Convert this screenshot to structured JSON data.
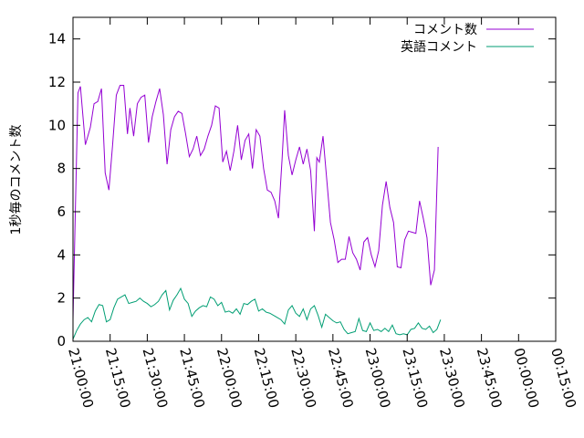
{
  "chart_data": {
    "type": "line",
    "title": "",
    "xlabel": "",
    "ylabel": "1秒毎のコメント数",
    "ylim": [
      0,
      15
    ],
    "yticks": [
      0,
      2,
      4,
      6,
      8,
      10,
      12,
      14
    ],
    "xticks": [
      "21:00:00",
      "21:15:00",
      "21:30:00",
      "21:45:00",
      "22:00:00",
      "22:15:00",
      "22:30:00",
      "22:45:00",
      "23:00:00",
      "23:15:00",
      "23:30:00",
      "23:45:00",
      "00:00:00",
      "00:15:00"
    ],
    "xlim_minutes": [
      0,
      195
    ],
    "grid": false,
    "legend_position": "top-right",
    "series": [
      {
        "name": "コメント数",
        "color": "#9400d3",
        "points": [
          [
            0,
            1.0
          ],
          [
            1,
            6.3
          ],
          [
            2,
            11.5
          ],
          [
            3,
            11.8
          ],
          [
            5,
            9.1
          ],
          [
            7,
            9.9
          ],
          [
            8.5,
            11.0
          ],
          [
            10,
            11.1
          ],
          [
            11.5,
            11.7
          ],
          [
            13,
            7.8
          ],
          [
            14.5,
            7.0
          ],
          [
            16,
            9.1
          ],
          [
            17.5,
            11.4
          ],
          [
            19,
            11.85
          ],
          [
            20.5,
            11.85
          ],
          [
            22,
            9.6
          ],
          [
            23,
            10.8
          ],
          [
            24.5,
            9.5
          ],
          [
            26,
            11.0
          ],
          [
            27.5,
            11.3
          ],
          [
            29,
            11.4
          ],
          [
            30.5,
            9.2
          ],
          [
            32,
            10.4
          ],
          [
            33.5,
            11.1
          ],
          [
            35,
            11.7
          ],
          [
            36.5,
            10.5
          ],
          [
            38,
            8.2
          ],
          [
            39.5,
            9.8
          ],
          [
            41,
            10.4
          ],
          [
            42.5,
            10.65
          ],
          [
            44,
            10.55
          ],
          [
            45.5,
            9.6
          ],
          [
            47,
            8.55
          ],
          [
            48.5,
            8.9
          ],
          [
            50,
            9.5
          ],
          [
            51.5,
            8.6
          ],
          [
            53,
            8.9
          ],
          [
            54.5,
            9.5
          ],
          [
            56,
            10.0
          ],
          [
            57.5,
            10.9
          ],
          [
            59,
            10.8
          ],
          [
            60.5,
            8.3
          ],
          [
            62,
            8.8
          ],
          [
            63.5,
            7.9
          ],
          [
            65,
            8.8
          ],
          [
            66.5,
            10.0
          ],
          [
            68,
            8.4
          ],
          [
            69.5,
            9.3
          ],
          [
            71,
            9.6
          ],
          [
            72.5,
            8.0
          ],
          [
            74,
            9.8
          ],
          [
            75.5,
            9.5
          ],
          [
            77,
            8.0
          ],
          [
            78.5,
            7.0
          ],
          [
            80,
            6.9
          ],
          [
            81.5,
            6.5
          ],
          [
            83,
            5.7
          ],
          [
            84.5,
            8.5
          ],
          [
            85.5,
            10.7
          ],
          [
            87,
            8.6
          ],
          [
            88.5,
            7.7
          ],
          [
            90,
            8.4
          ],
          [
            91.5,
            9.0
          ],
          [
            93,
            8.2
          ],
          [
            94.5,
            8.9
          ],
          [
            96,
            7.9
          ],
          [
            97.5,
            5.1
          ],
          [
            98.5,
            8.5
          ],
          [
            99.5,
            8.3
          ],
          [
            101,
            9.5
          ],
          [
            102.5,
            7.5
          ],
          [
            104,
            5.5
          ],
          [
            105.5,
            4.7
          ],
          [
            107,
            3.65
          ],
          [
            108.5,
            3.8
          ],
          [
            110,
            3.8
          ],
          [
            111.5,
            4.85
          ],
          [
            113,
            4.1
          ],
          [
            114.5,
            3.8
          ],
          [
            116,
            3.3
          ],
          [
            117.5,
            4.6
          ],
          [
            119,
            4.8
          ],
          [
            120.5,
            4.0
          ],
          [
            122,
            3.45
          ],
          [
            123.5,
            4.2
          ],
          [
            125,
            6.3
          ],
          [
            126.5,
            7.4
          ],
          [
            128,
            6.2
          ],
          [
            129.5,
            5.5
          ],
          [
            131,
            3.45
          ],
          [
            132.5,
            3.4
          ],
          [
            134,
            4.7
          ],
          [
            135.5,
            5.1
          ],
          [
            137,
            5.05
          ],
          [
            138.5,
            5.0
          ],
          [
            140,
            6.5
          ],
          [
            141.5,
            5.7
          ],
          [
            143,
            4.8
          ],
          [
            144.5,
            2.6
          ],
          [
            146,
            3.3
          ],
          [
            147.5,
            9.0
          ]
        ]
      },
      {
        "name": "英語コメント",
        "color": "#009e73",
        "points": [
          [
            0,
            0.1
          ],
          [
            1.5,
            0.5
          ],
          [
            3,
            0.8
          ],
          [
            4.5,
            1.0
          ],
          [
            6,
            1.1
          ],
          [
            7.5,
            0.9
          ],
          [
            9,
            1.4
          ],
          [
            10.5,
            1.7
          ],
          [
            12,
            1.65
          ],
          [
            13.5,
            0.9
          ],
          [
            15,
            1.0
          ],
          [
            16.5,
            1.55
          ],
          [
            18,
            1.95
          ],
          [
            19.5,
            2.05
          ],
          [
            21,
            2.15
          ],
          [
            22.5,
            1.75
          ],
          [
            24,
            1.8
          ],
          [
            25.5,
            1.85
          ],
          [
            27,
            2.0
          ],
          [
            28.5,
            1.85
          ],
          [
            30,
            1.75
          ],
          [
            31.5,
            1.6
          ],
          [
            33,
            1.7
          ],
          [
            34.5,
            1.85
          ],
          [
            36,
            2.15
          ],
          [
            37.5,
            2.35
          ],
          [
            39,
            1.45
          ],
          [
            40.5,
            1.9
          ],
          [
            42,
            2.15
          ],
          [
            43.5,
            2.45
          ],
          [
            45,
            1.95
          ],
          [
            46.5,
            1.75
          ],
          [
            48,
            1.15
          ],
          [
            49.5,
            1.4
          ],
          [
            51,
            1.55
          ],
          [
            52.5,
            1.65
          ],
          [
            54,
            1.6
          ],
          [
            55.5,
            2.05
          ],
          [
            57,
            1.95
          ],
          [
            58.5,
            1.65
          ],
          [
            60,
            1.8
          ],
          [
            61.5,
            1.35
          ],
          [
            63,
            1.4
          ],
          [
            64.5,
            1.3
          ],
          [
            66,
            1.5
          ],
          [
            67.5,
            1.25
          ],
          [
            69,
            1.75
          ],
          [
            70.5,
            1.7
          ],
          [
            72,
            1.85
          ],
          [
            73.5,
            1.95
          ],
          [
            75,
            1.4
          ],
          [
            76.5,
            1.5
          ],
          [
            78,
            1.35
          ],
          [
            79.5,
            1.3
          ],
          [
            81,
            1.2
          ],
          [
            82.5,
            1.1
          ],
          [
            84,
            1.0
          ],
          [
            85.5,
            0.8
          ],
          [
            87,
            1.45
          ],
          [
            88.5,
            1.65
          ],
          [
            90,
            1.3
          ],
          [
            91.5,
            1.15
          ],
          [
            93,
            1.5
          ],
          [
            94.5,
            1.0
          ],
          [
            96,
            1.5
          ],
          [
            97.5,
            1.65
          ],
          [
            99,
            1.2
          ],
          [
            100.5,
            0.65
          ],
          [
            102,
            1.25
          ],
          [
            103.5,
            1.1
          ],
          [
            105,
            0.95
          ],
          [
            106.5,
            0.85
          ],
          [
            108,
            0.9
          ],
          [
            109.5,
            0.55
          ],
          [
            111,
            0.35
          ],
          [
            112.5,
            0.4
          ],
          [
            114,
            0.45
          ],
          [
            115.5,
            1.05
          ],
          [
            117,
            0.5
          ],
          [
            118.5,
            0.45
          ],
          [
            120,
            0.85
          ],
          [
            121.5,
            0.5
          ],
          [
            123,
            0.55
          ],
          [
            124.5,
            0.45
          ],
          [
            126,
            0.6
          ],
          [
            127.5,
            0.45
          ],
          [
            129,
            0.75
          ],
          [
            130.5,
            0.35
          ],
          [
            132,
            0.3
          ],
          [
            133.5,
            0.35
          ],
          [
            135,
            0.3
          ],
          [
            136.5,
            0.55
          ],
          [
            138,
            0.6
          ],
          [
            139.5,
            0.85
          ],
          [
            141,
            0.6
          ],
          [
            142.5,
            0.55
          ],
          [
            144,
            0.7
          ],
          [
            145.5,
            0.4
          ],
          [
            147,
            0.55
          ],
          [
            148.5,
            1.0
          ]
        ]
      }
    ]
  }
}
